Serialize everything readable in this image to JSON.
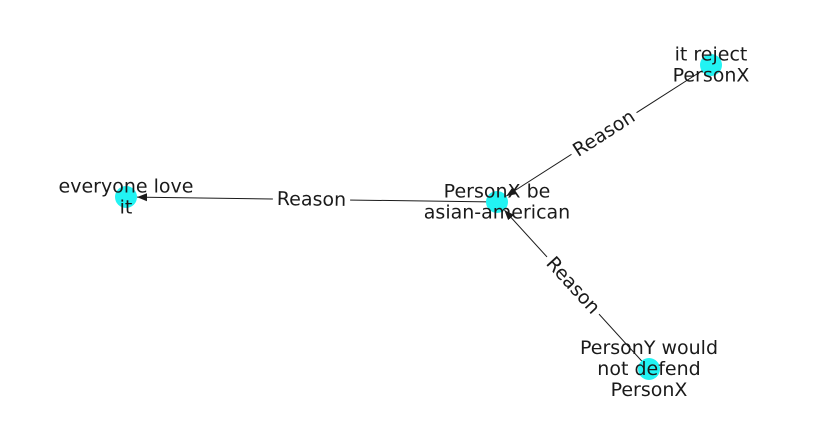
{
  "colors": {
    "node": "#22f3f3",
    "edge": "#1a1a1a",
    "text": "#1a1a1a"
  },
  "nodes": [
    {
      "id": "center",
      "lines": [
        "PersonX be",
        "asian-american"
      ]
    },
    {
      "id": "everyone",
      "lines": [
        "everyone love",
        "it"
      ]
    },
    {
      "id": "reject",
      "lines": [
        "it reject",
        "PersonX"
      ]
    },
    {
      "id": "persony",
      "lines": [
        "PersonY would",
        "not defend",
        "PersonX"
      ]
    }
  ],
  "edges": [
    {
      "from": "center",
      "to": "everyone",
      "label": "Reason"
    },
    {
      "from": "reject",
      "to": "center",
      "label": "Reason"
    },
    {
      "from": "persony",
      "to": "center",
      "label": "Reason"
    }
  ]
}
